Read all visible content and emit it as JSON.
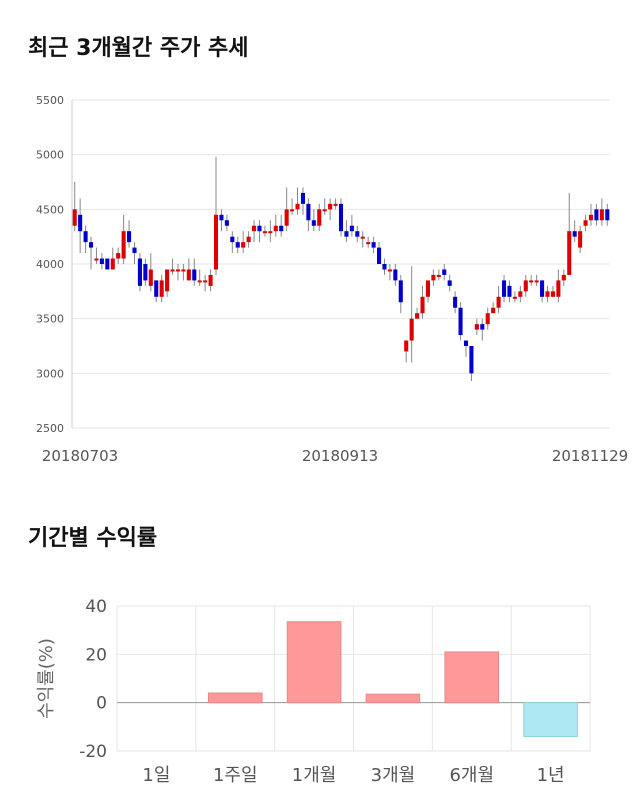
{
  "stock_section": {
    "title": "최근 3개월간 주가 추세"
  },
  "returns_section": {
    "title": "기간별 수익률"
  },
  "colors": {
    "up": "#dd0000",
    "down": "#0000cc",
    "positive": "#ff9999",
    "negative": "#aee8f2"
  },
  "chart_data": [
    {
      "type": "candlestick",
      "ylim": [
        2500,
        5500
      ],
      "yticks": [
        "5500",
        "5000",
        "4500",
        "4000",
        "3500",
        "3000",
        "2500"
      ],
      "x_labels": [
        "20180703",
        "20180913",
        "20181129"
      ],
      "grid": true,
      "candles": [
        [
          4350,
          4500,
          4750,
          4300
        ],
        [
          4450,
          4300,
          4600,
          4100
        ],
        [
          4300,
          4200,
          4350,
          4100
        ],
        [
          4200,
          4150,
          4250,
          3950
        ],
        [
          4050,
          4050,
          4150,
          4000
        ],
        [
          4050,
          4000,
          4100,
          3950
        ],
        [
          4050,
          3950,
          4050,
          3950
        ],
        [
          3950,
          4050,
          4150,
          3950
        ],
        [
          4050,
          4100,
          4150,
          4000
        ],
        [
          4050,
          4300,
          4450,
          4000
        ],
        [
          4300,
          4200,
          4400,
          4150
        ],
        [
          4150,
          4100,
          4200,
          4000
        ],
        [
          4050,
          3800,
          4100,
          3750
        ],
        [
          4000,
          3850,
          4050,
          3800
        ],
        [
          3800,
          3950,
          4100,
          3750
        ],
        [
          3850,
          3700,
          3850,
          3650
        ],
        [
          3700,
          3850,
          3900,
          3650
        ],
        [
          3750,
          3950,
          3950,
          3700
        ],
        [
          3950,
          3950,
          4050,
          3900
        ],
        [
          3950,
          3950,
          4000,
          3850
        ],
        [
          3950,
          3950,
          4000,
          3850
        ],
        [
          3850,
          3950,
          4050,
          3850
        ],
        [
          3950,
          3850,
          4050,
          3800
        ],
        [
          3850,
          3850,
          3950,
          3800
        ],
        [
          3850,
          3850,
          3900,
          3750
        ],
        [
          3800,
          3900,
          3950,
          3750
        ],
        [
          3950,
          4450,
          4980,
          3900
        ],
        [
          4450,
          4400,
          4500,
          4300
        ],
        [
          4400,
          4350,
          4450,
          4300
        ],
        [
          4250,
          4200,
          4300,
          4100
        ],
        [
          4200,
          4150,
          4250,
          4100
        ],
        [
          4150,
          4200,
          4300,
          4100
        ],
        [
          4200,
          4250,
          4300,
          4150
        ],
        [
          4300,
          4350,
          4400,
          4200
        ],
        [
          4350,
          4300,
          4400,
          4200
        ],
        [
          4300,
          4300,
          4350,
          4250
        ],
        [
          4300,
          4300,
          4400,
          4200
        ],
        [
          4300,
          4350,
          4450,
          4250
        ],
        [
          4350,
          4300,
          4450,
          4250
        ],
        [
          4350,
          4500,
          4700,
          4300
        ],
        [
          4500,
          4500,
          4600,
          4450
        ],
        [
          4500,
          4550,
          4700,
          4450
        ],
        [
          4650,
          4550,
          4700,
          4450
        ],
        [
          4550,
          4400,
          4600,
          4300
        ],
        [
          4400,
          4350,
          4500,
          4300
        ],
        [
          4350,
          4500,
          4550,
          4300
        ],
        [
          4500,
          4500,
          4600,
          4450
        ],
        [
          4500,
          4550,
          4600,
          4400
        ],
        [
          4550,
          4550,
          4600,
          4500
        ],
        [
          4550,
          4300,
          4600,
          4250
        ],
        [
          4300,
          4250,
          4400,
          4200
        ],
        [
          4350,
          4300,
          4450,
          4250
        ],
        [
          4300,
          4250,
          4350,
          4200
        ],
        [
          4250,
          4250,
          4300,
          4150
        ],
        [
          4200,
          4200,
          4250,
          4150
        ],
        [
          4200,
          4150,
          4250,
          4100
        ],
        [
          4150,
          4000,
          4200,
          4000
        ],
        [
          4000,
          3950,
          4050,
          3900
        ],
        [
          3950,
          3950,
          4000,
          3850
        ],
        [
          3950,
          3850,
          4000,
          3800
        ],
        [
          3850,
          3650,
          3900,
          3550
        ],
        [
          3200,
          3300,
          3300,
          3100
        ],
        [
          3300,
          3500,
          3980,
          3100
        ],
        [
          3500,
          3550,
          3600,
          3500
        ],
        [
          3550,
          3700,
          3800,
          3500
        ],
        [
          3700,
          3850,
          3850,
          3650
        ],
        [
          3850,
          3900,
          3950,
          3800
        ],
        [
          3900,
          3900,
          3950,
          3850
        ],
        [
          3950,
          3900,
          4000,
          3850
        ],
        [
          3850,
          3800,
          3900,
          3750
        ],
        [
          3700,
          3600,
          3750,
          3550
        ],
        [
          3600,
          3350,
          3650,
          3300
        ],
        [
          3300,
          3250,
          3300,
          3150
        ],
        [
          3250,
          3000,
          3250,
          2930
        ],
        [
          3400,
          3450,
          3500,
          3350
        ],
        [
          3450,
          3400,
          3500,
          3300
        ],
        [
          3450,
          3550,
          3600,
          3400
        ],
        [
          3550,
          3600,
          3650,
          3550
        ],
        [
          3600,
          3700,
          3800,
          3550
        ],
        [
          3850,
          3700,
          3900,
          3650
        ],
        [
          3800,
          3700,
          3850,
          3650
        ],
        [
          3700,
          3700,
          3750,
          3650
        ],
        [
          3700,
          3750,
          3800,
          3650
        ],
        [
          3750,
          3850,
          3900,
          3700
        ],
        [
          3850,
          3850,
          3900,
          3800
        ],
        [
          3850,
          3850,
          3900,
          3800
        ],
        [
          3850,
          3700,
          3850,
          3650
        ],
        [
          3700,
          3750,
          3800,
          3650
        ],
        [
          3700,
          3750,
          3800,
          3700
        ],
        [
          3700,
          3850,
          3950,
          3650
        ],
        [
          3850,
          3900,
          3950,
          3800
        ],
        [
          3900,
          4300,
          4650,
          3900
        ],
        [
          4300,
          4250,
          4400,
          4200
        ],
        [
          4150,
          4300,
          4350,
          4100
        ],
        [
          4350,
          4400,
          4450,
          4300
        ],
        [
          4400,
          4450,
          4550,
          4350
        ],
        [
          4500,
          4400,
          4550,
          4350
        ],
        [
          4400,
          4500,
          4600,
          4350
        ],
        [
          4500,
          4400,
          4550,
          4350
        ]
      ]
    },
    {
      "type": "bar",
      "title": "",
      "ylabel": "수익률(%)",
      "ylim": [
        -20,
        40
      ],
      "yticks": [
        "40",
        "20",
        "0",
        "-20"
      ],
      "categories": [
        "1일",
        "1주일",
        "1개월",
        "3개월",
        "6개월",
        "1년"
      ],
      "values": [
        0,
        4,
        33.5,
        3.5,
        21,
        -14
      ],
      "grid": true
    }
  ]
}
